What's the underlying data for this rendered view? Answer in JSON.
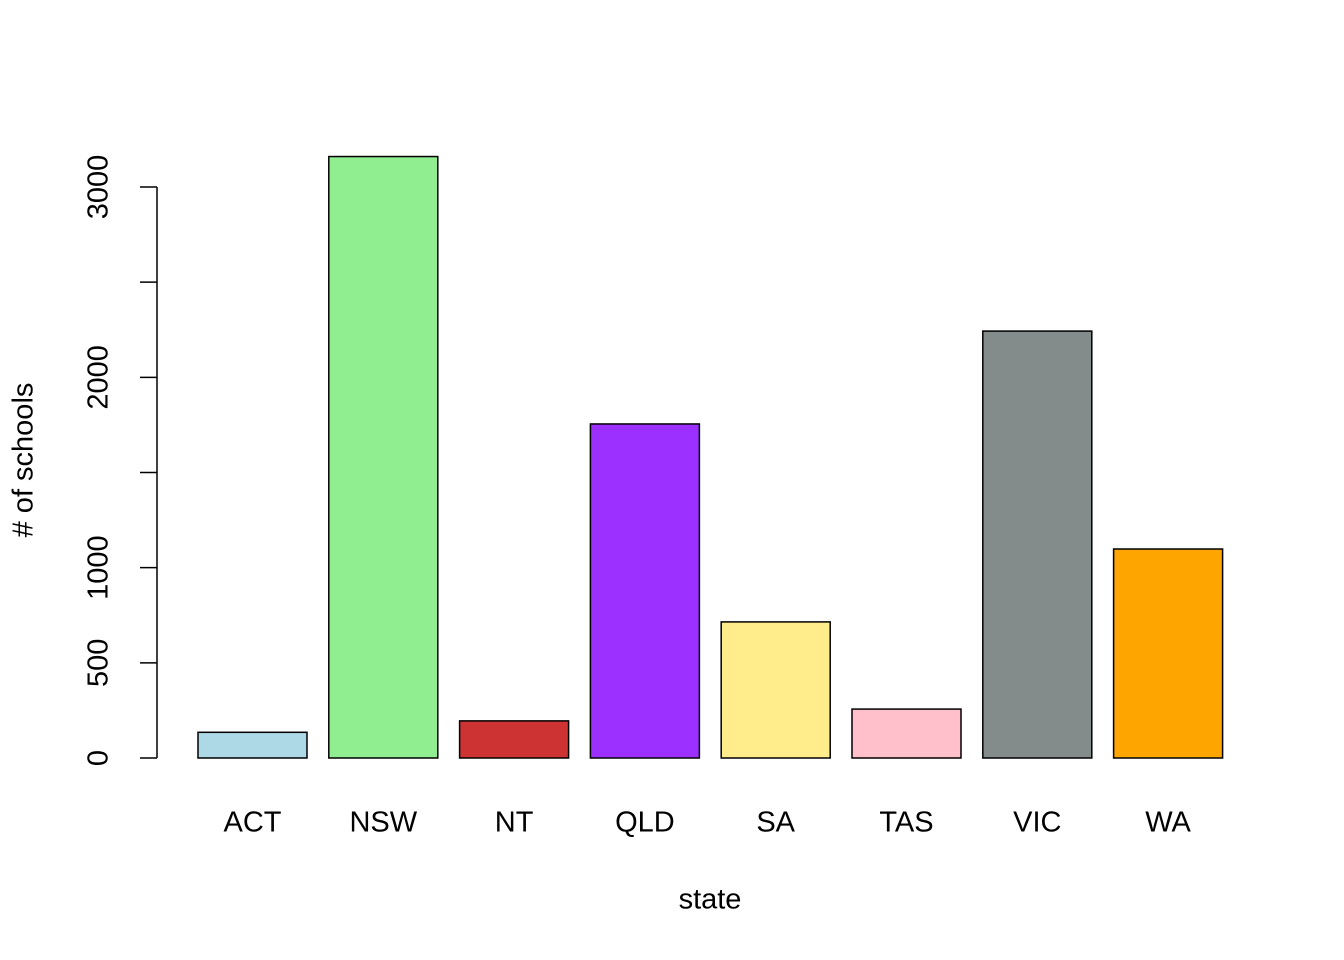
{
  "chart_data": {
    "type": "bar",
    "categories": [
      "ACT",
      "NSW",
      "NT",
      "QLD",
      "SA",
      "TAS",
      "VIC",
      "WA"
    ],
    "values": [
      135,
      3160,
      195,
      1755,
      715,
      257,
      2243,
      1098
    ],
    "colors": [
      "#add8e6",
      "#90ee90",
      "#cd3333",
      "#9b30ff",
      "#ffec8b",
      "#ffc0cb",
      "#838b8b",
      "#ffa500"
    ],
    "x_label": "state",
    "y_label": "# of schools",
    "ylim": [
      0,
      3160
    ],
    "yticks": [
      0,
      500,
      1000,
      {
        "value": 1500,
        "label": null
      },
      2000,
      {
        "value": 2500,
        "label": null
      },
      3000
    ],
    "grid": false
  }
}
